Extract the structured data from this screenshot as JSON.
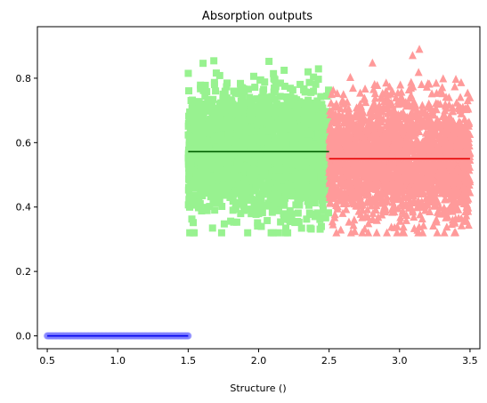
{
  "chart_data": {
    "type": "scatter",
    "title": "Absorption outputs",
    "xlabel": "Structure ()",
    "ylabel": "",
    "xlim": [
      0.43,
      3.57
    ],
    "ylim": [
      -0.04,
      0.96
    ],
    "xticks": [
      "0.5",
      "1.0",
      "1.5",
      "2.0",
      "2.5",
      "3.0",
      "3.5"
    ],
    "yticks": [
      "0.0",
      "0.2",
      "0.4",
      "0.6",
      "0.8"
    ],
    "grid": false,
    "series": [
      {
        "marker": "circle",
        "color": "#8080ff",
        "line_color": "#0000ee",
        "x_range": [
          0.5,
          1.5
        ],
        "y_center": 0.0,
        "y_spread": 0.0,
        "y_min": 0.0,
        "y_max": 0.0,
        "mean_y": 0.0
      },
      {
        "marker": "square",
        "color": "#98f290",
        "line_color": "#005f00",
        "x_range": [
          1.5,
          2.5
        ],
        "y_center": 0.57,
        "y_spread": 0.09,
        "y_min": 0.32,
        "y_max": 0.92,
        "mean_y": 0.572
      },
      {
        "marker": "triangle",
        "color": "#ff9a9a",
        "line_color": "#e60000",
        "x_range": [
          2.5,
          3.5
        ],
        "y_center": 0.55,
        "y_spread": 0.09,
        "y_min": 0.32,
        "y_max": 0.89,
        "mean_y": 0.55
      }
    ]
  }
}
